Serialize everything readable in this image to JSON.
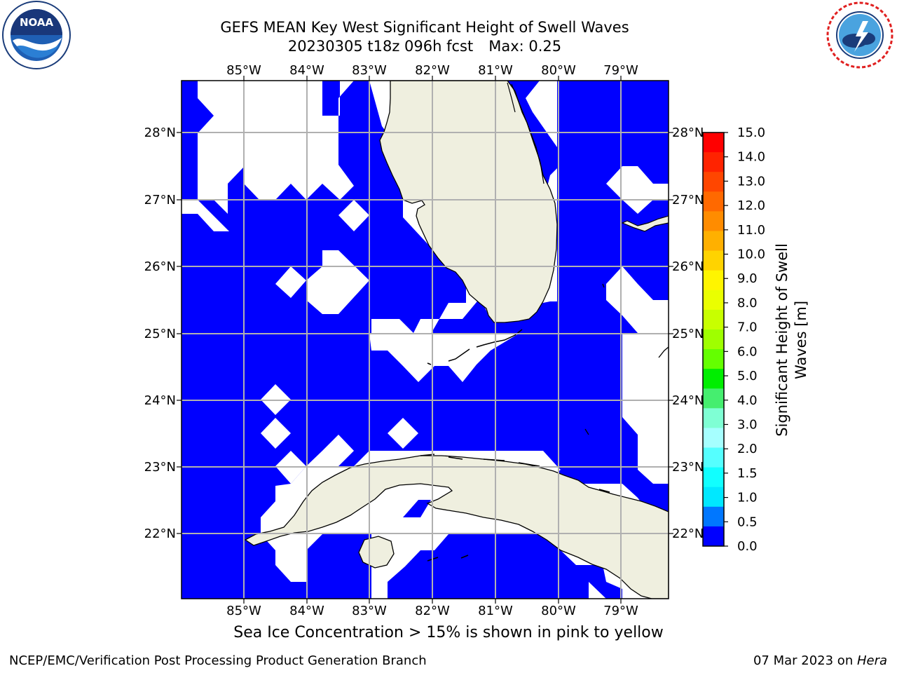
{
  "header": {
    "title_line1": "GEFS MEAN Key West Significant Height of Swell Waves",
    "title_line2_run": "20230305 t18z 096h fcst",
    "title_line2_max": "Max: 0.25"
  },
  "logos": {
    "left": {
      "name": "NOAA",
      "text": "NOAA",
      "ring_text": "NATIONAL OCEANIC AND ATMOSPHERIC ADMINISTRATION · U.S. DEPARTMENT OF COMMERCE"
    },
    "right": {
      "name": "National Weather Service",
      "ring_text": "NATIONAL WEATHER SERVICE"
    }
  },
  "map": {
    "lon_labels": [
      "85°W",
      "84°W",
      "83°W",
      "82°W",
      "81°W",
      "80°W",
      "79°W"
    ],
    "lat_labels": [
      "28°N",
      "27°N",
      "26°N",
      "25°N",
      "24°N",
      "23°N",
      "22°N"
    ],
    "colors": {
      "water": "#0000ff",
      "land": "#efefdf",
      "nodata": "#ffffff",
      "grid": "#b0b0b0",
      "coast": "#000000"
    }
  },
  "colorbar": {
    "label_line1": "Significant Height of Swell",
    "label_line2": "Waves [m]",
    "ticks": [
      "15.0",
      "14.0",
      "13.0",
      "12.0",
      "11.0",
      "10.0",
      "9.0",
      "8.0",
      "7.0",
      "6.0",
      "5.0",
      "4.0",
      "3.0",
      "2.0",
      "1.5",
      "1.0",
      "0.5",
      "0.0"
    ],
    "colors_top_to_bottom": [
      "#ff0000",
      "#ff2300",
      "#ff4600",
      "#ff6900",
      "#ff8c00",
      "#ffb000",
      "#ffd300",
      "#fff500",
      "#eaff00",
      "#c8ff00",
      "#9fff00",
      "#64ff00",
      "#00ee00",
      "#45ee6f",
      "#7fffd4",
      "#a6ffff",
      "#55ffff",
      "#11ffff",
      "#00e8ff",
      "#0077ff",
      "#0000ff"
    ]
  },
  "subtitle": "Sea Ice Concentration > 15% is shown in pink to yellow",
  "footer": {
    "left": "NCEP/EMC/Verification Post Processing Product Generation Branch",
    "right_date": "07 Mar 2023 on ",
    "right_host": "Hera"
  }
}
